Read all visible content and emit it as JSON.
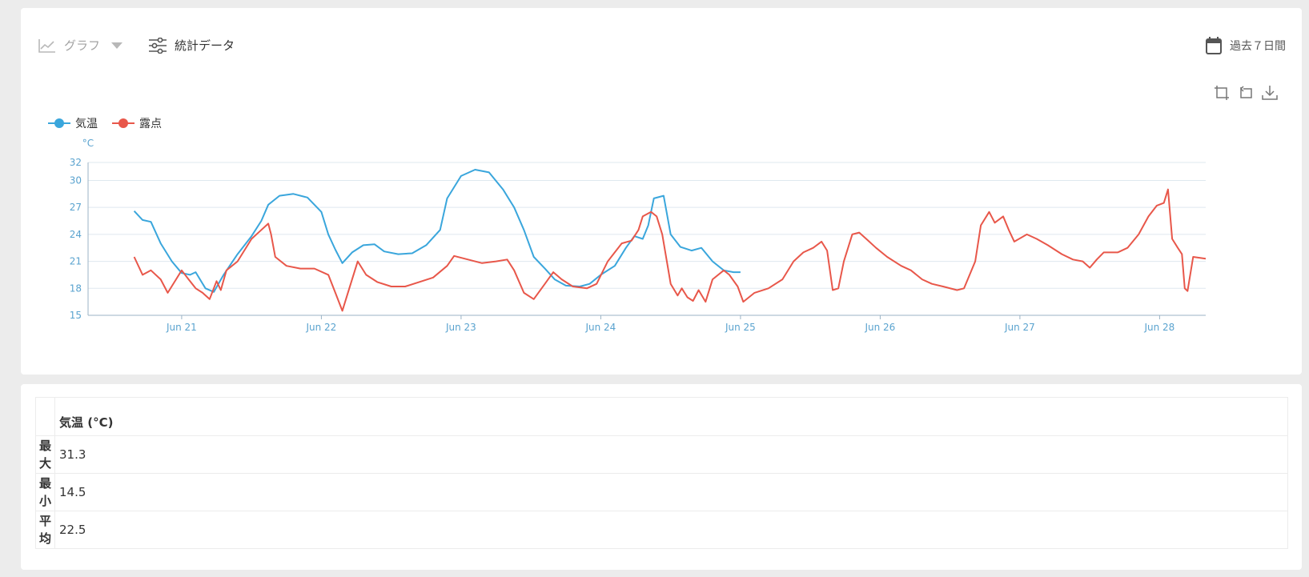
{
  "toolbar": {
    "graph_label": "グラフ",
    "stats_label": "統計データ",
    "range_label": "過去７日間"
  },
  "colors": {
    "temperature": "#3aa6dc",
    "dew_point": "#e8574a",
    "axis": "#5aa3cf"
  },
  "chart_data": {
    "type": "line",
    "y_unit": "°C",
    "yticks": [
      15,
      18,
      21,
      24,
      27,
      30,
      32
    ],
    "ylim": [
      15,
      32
    ],
    "xlim": [
      20.33,
      28.33
    ],
    "xticks": [
      {
        "x": 21,
        "label": "Jun 21"
      },
      {
        "x": 22,
        "label": "Jun 22"
      },
      {
        "x": 23,
        "label": "Jun 23"
      },
      {
        "x": 24,
        "label": "Jun 24"
      },
      {
        "x": 25,
        "label": "Jun 25"
      },
      {
        "x": 26,
        "label": "Jun 26"
      },
      {
        "x": 27,
        "label": "Jun 27"
      },
      {
        "x": 28,
        "label": "Jun 28"
      }
    ],
    "grid": true,
    "legend_position": "top-left",
    "series": [
      {
        "name": "気温",
        "color": "#3aa6dc",
        "points": [
          [
            20.66,
            26.6
          ],
          [
            20.72,
            25.6
          ],
          [
            20.78,
            25.4
          ],
          [
            20.85,
            23
          ],
          [
            20.93,
            21
          ],
          [
            21.0,
            19.7
          ],
          [
            21.06,
            19.5
          ],
          [
            21.1,
            19.8
          ],
          [
            21.17,
            18
          ],
          [
            21.23,
            17.6
          ],
          [
            21.3,
            19.5
          ],
          [
            21.4,
            21.8
          ],
          [
            21.5,
            23.8
          ],
          [
            21.57,
            25.5
          ],
          [
            21.62,
            27.3
          ],
          [
            21.7,
            28.3
          ],
          [
            21.8,
            28.5
          ],
          [
            21.9,
            28.1
          ],
          [
            22.0,
            26.5
          ],
          [
            22.05,
            24
          ],
          [
            22.1,
            22.3
          ],
          [
            22.15,
            20.8
          ],
          [
            22.22,
            22
          ],
          [
            22.3,
            22.8
          ],
          [
            22.38,
            22.9
          ],
          [
            22.45,
            22.1
          ],
          [
            22.55,
            21.8
          ],
          [
            22.65,
            21.9
          ],
          [
            22.75,
            22.8
          ],
          [
            22.85,
            24.5
          ],
          [
            22.9,
            28
          ],
          [
            23.0,
            30.5
          ],
          [
            23.1,
            31.2
          ],
          [
            23.2,
            30.9
          ],
          [
            23.3,
            29
          ],
          [
            23.38,
            27
          ],
          [
            23.45,
            24.5
          ],
          [
            23.52,
            21.5
          ],
          [
            23.6,
            20.2
          ],
          [
            23.67,
            19
          ],
          [
            23.75,
            18.3
          ],
          [
            23.85,
            18.2
          ],
          [
            23.92,
            18.5
          ],
          [
            24.0,
            19.5
          ],
          [
            24.1,
            20.5
          ],
          [
            24.18,
            22.5
          ],
          [
            24.24,
            23.8
          ],
          [
            24.3,
            23.5
          ],
          [
            24.34,
            25
          ],
          [
            24.38,
            28
          ],
          [
            24.45,
            28.3
          ],
          [
            24.5,
            24
          ],
          [
            24.57,
            22.6
          ],
          [
            24.65,
            22.2
          ],
          [
            24.72,
            22.5
          ],
          [
            24.8,
            21
          ],
          [
            24.88,
            20
          ],
          [
            24.95,
            19.8
          ],
          [
            25.0,
            19.8
          ]
        ]
      },
      {
        "name": "露点",
        "color": "#e8574a",
        "points": [
          [
            20.66,
            21.5
          ],
          [
            20.72,
            19.5
          ],
          [
            20.78,
            20
          ],
          [
            20.85,
            19
          ],
          [
            20.9,
            17.5
          ],
          [
            20.96,
            19
          ],
          [
            21.0,
            20
          ],
          [
            21.05,
            19
          ],
          [
            21.1,
            18
          ],
          [
            21.15,
            17.5
          ],
          [
            21.2,
            16.8
          ],
          [
            21.25,
            18.8
          ],
          [
            21.28,
            17.8
          ],
          [
            21.32,
            20
          ],
          [
            21.4,
            21
          ],
          [
            21.5,
            23.5
          ],
          [
            21.57,
            24.5
          ],
          [
            21.62,
            25.2
          ],
          [
            21.64,
            24
          ],
          [
            21.67,
            21.5
          ],
          [
            21.75,
            20.5
          ],
          [
            21.85,
            20.2
          ],
          [
            21.95,
            20.2
          ],
          [
            22.05,
            19.5
          ],
          [
            22.1,
            17.5
          ],
          [
            22.15,
            15.5
          ],
          [
            22.2,
            18
          ],
          [
            22.26,
            21
          ],
          [
            22.32,
            19.5
          ],
          [
            22.4,
            18.7
          ],
          [
            22.5,
            18.2
          ],
          [
            22.6,
            18.2
          ],
          [
            22.7,
            18.7
          ],
          [
            22.8,
            19.2
          ],
          [
            22.9,
            20.5
          ],
          [
            22.95,
            21.6
          ],
          [
            23.05,
            21.2
          ],
          [
            23.15,
            20.8
          ],
          [
            23.25,
            21
          ],
          [
            23.33,
            21.2
          ],
          [
            23.38,
            20
          ],
          [
            23.45,
            17.5
          ],
          [
            23.52,
            16.8
          ],
          [
            23.6,
            18.5
          ],
          [
            23.66,
            19.8
          ],
          [
            23.72,
            19
          ],
          [
            23.8,
            18.2
          ],
          [
            23.9,
            18
          ],
          [
            23.97,
            18.5
          ],
          [
            24.05,
            21
          ],
          [
            24.15,
            23
          ],
          [
            24.22,
            23.3
          ],
          [
            24.27,
            24.5
          ],
          [
            24.3,
            26
          ],
          [
            24.36,
            26.5
          ],
          [
            24.4,
            26
          ],
          [
            24.44,
            24
          ],
          [
            24.5,
            18.5
          ],
          [
            24.55,
            17.2
          ],
          [
            24.58,
            18
          ],
          [
            24.62,
            17
          ],
          [
            24.66,
            16.6
          ],
          [
            24.7,
            17.8
          ],
          [
            24.75,
            16.5
          ],
          [
            24.8,
            19
          ],
          [
            24.88,
            20
          ],
          [
            24.92,
            19.5
          ],
          [
            24.98,
            18.2
          ],
          [
            25.02,
            16.5
          ],
          [
            25.1,
            17.5
          ],
          [
            25.2,
            18
          ],
          [
            25.3,
            19
          ],
          [
            25.38,
            21
          ],
          [
            25.45,
            22
          ],
          [
            25.52,
            22.5
          ],
          [
            25.58,
            23.2
          ],
          [
            25.62,
            22.2
          ],
          [
            25.66,
            17.8
          ],
          [
            25.7,
            18
          ],
          [
            25.74,
            21
          ],
          [
            25.8,
            24
          ],
          [
            25.85,
            24.2
          ],
          [
            25.9,
            23.5
          ],
          [
            25.97,
            22.5
          ],
          [
            26.05,
            21.5
          ],
          [
            26.15,
            20.5
          ],
          [
            26.22,
            20
          ],
          [
            26.3,
            19
          ],
          [
            26.37,
            18.5
          ],
          [
            26.45,
            18.2
          ],
          [
            26.55,
            17.8
          ],
          [
            26.6,
            18
          ],
          [
            26.68,
            21
          ],
          [
            26.72,
            25
          ],
          [
            26.78,
            26.5
          ],
          [
            26.82,
            25.3
          ],
          [
            26.88,
            26
          ],
          [
            26.92,
            24.5
          ],
          [
            26.96,
            23.2
          ],
          [
            27.05,
            24
          ],
          [
            27.12,
            23.5
          ],
          [
            27.2,
            22.8
          ],
          [
            27.3,
            21.8
          ],
          [
            27.38,
            21.2
          ],
          [
            27.45,
            21
          ],
          [
            27.5,
            20.3
          ],
          [
            27.55,
            21.2
          ],
          [
            27.6,
            22
          ],
          [
            27.7,
            22
          ],
          [
            27.77,
            22.5
          ],
          [
            27.85,
            24
          ],
          [
            27.92,
            26
          ],
          [
            27.98,
            27.2
          ],
          [
            28.03,
            27.5
          ],
          [
            28.06,
            29
          ],
          [
            28.09,
            23.5
          ],
          [
            28.13,
            22.5
          ],
          [
            28.16,
            21.8
          ],
          [
            28.18,
            18
          ],
          [
            28.2,
            17.7
          ],
          [
            28.24,
            21.5
          ],
          [
            28.33,
            21.3
          ]
        ]
      }
    ]
  },
  "stats": {
    "column_header": "気温 (°C)",
    "rows": [
      {
        "label": "最大",
        "value": "31.3"
      },
      {
        "label": "最小",
        "value": "14.5"
      },
      {
        "label": "平均",
        "value": "22.5"
      }
    ]
  }
}
